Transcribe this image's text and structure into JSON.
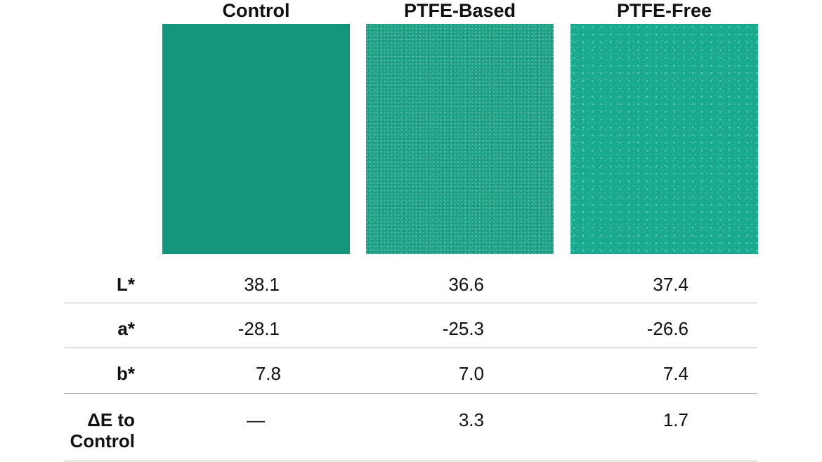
{
  "columns": [
    "Control",
    "PTFE-Based",
    "PTFE-Free"
  ],
  "swatch_colors": [
    "#13967b",
    "#1ea387",
    "#1aaa90"
  ],
  "rows": [
    {
      "label": "L*",
      "values": [
        "38.1",
        "36.6",
        "37.4"
      ]
    },
    {
      "label": "a*",
      "values": [
        "-28.1",
        "-25.3",
        "-26.6"
      ]
    },
    {
      "label": "b*",
      "values": [
        "7.8",
        "7.0",
        "7.4"
      ]
    },
    {
      "label_line1": "ΔE to",
      "label_line2": "Control",
      "values": [
        "—",
        "3.3",
        "1.7"
      ]
    }
  ]
}
